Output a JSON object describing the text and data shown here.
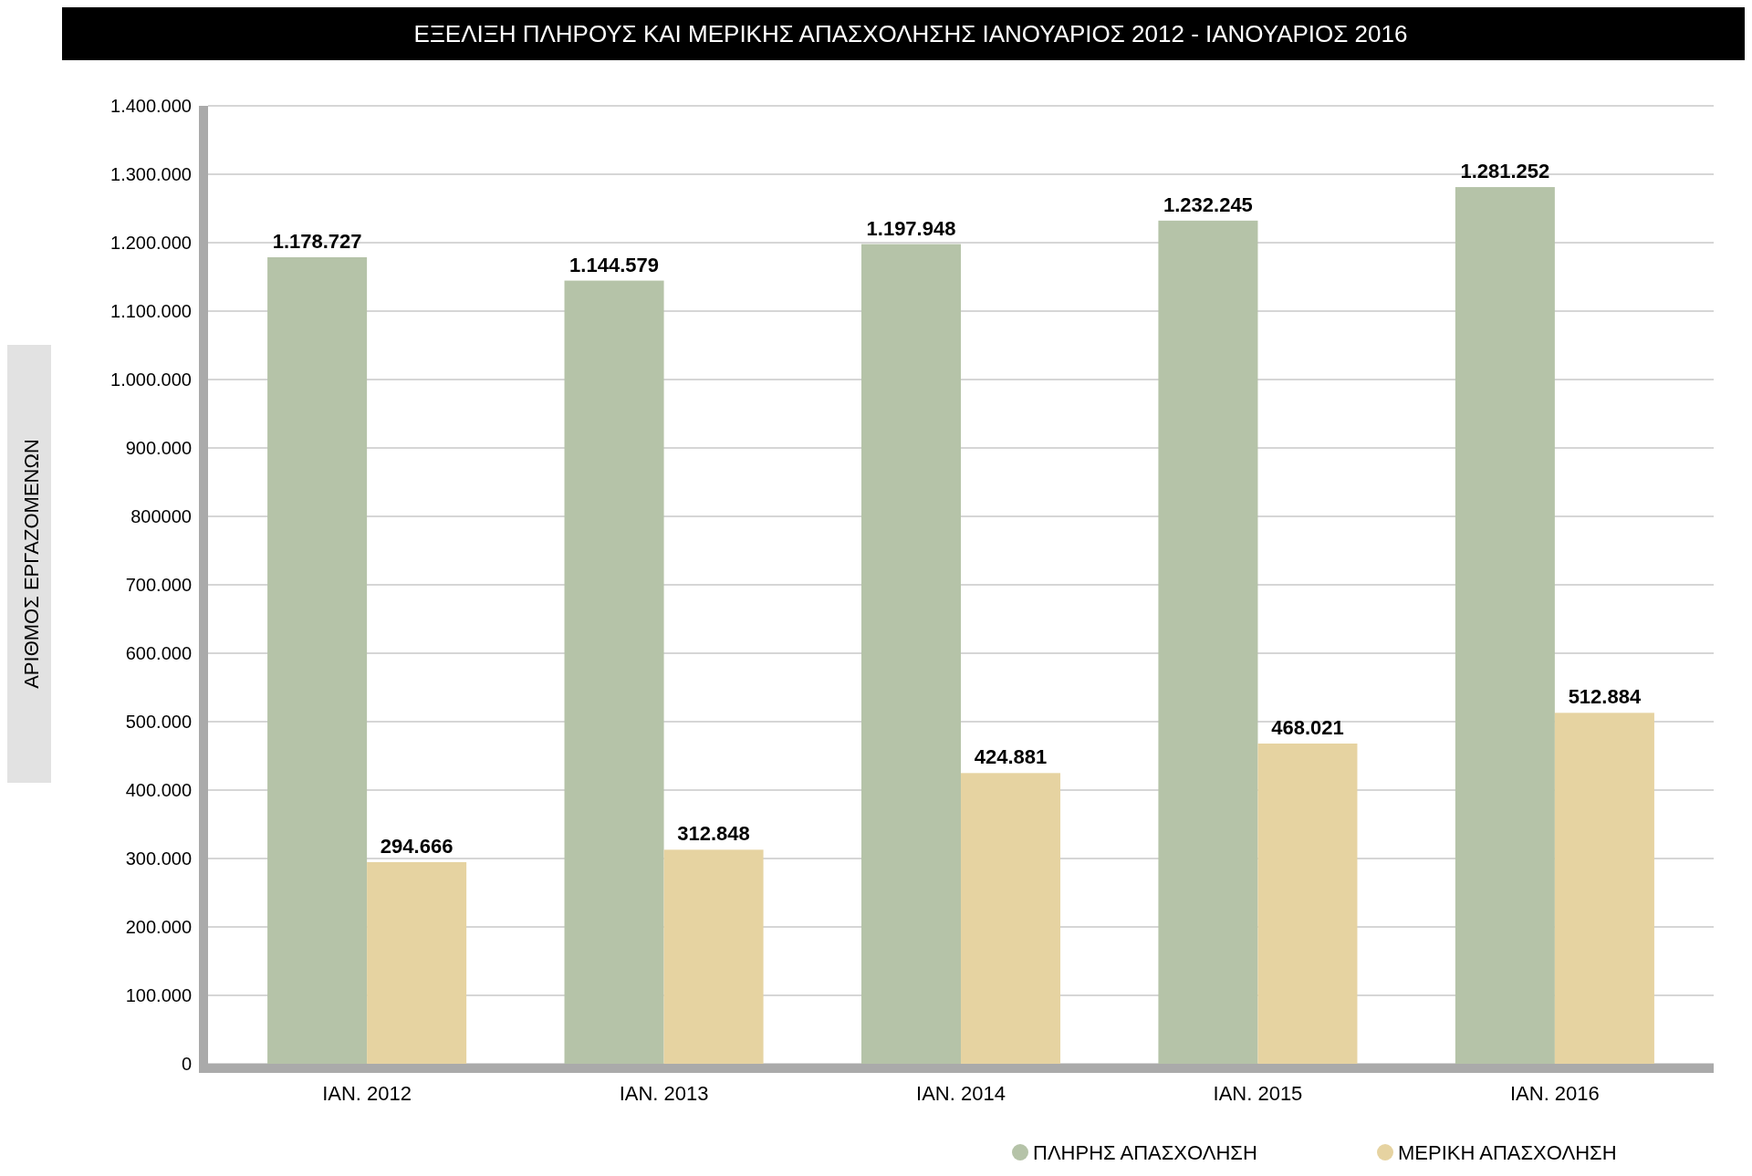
{
  "chart_data": {
    "type": "bar",
    "title": "ΕΞΕΛΙΞΗ ΠΛΗΡΟΥΣ ΚΑΙ ΜΕΡΙΚΗΣ ΑΠΑΣΧΟΛΗΣΗΣ ΙΑΝΟΥΑΡΙΟΣ 2012 - ΙΑΝΟΥΑΡΙΟΣ 2016",
    "ylabel": "ΑΡΙΘΜΟΣ ΕΡΓΑΖΟΜΕΝΩΝ",
    "categories": [
      "ΙΑΝ. 2012",
      "ΙΑΝ. 2013",
      "ΙΑΝ. 2014",
      "ΙΑΝ. 2015",
      "ΙΑΝ. 2016"
    ],
    "series": [
      {
        "name": "ΠΛΗΡΗΣ ΑΠΑΣΧΟΛΗΣΗ",
        "color": "#b5c3a8",
        "values": [
          1178727,
          1144579,
          1197948,
          1232245,
          1281252
        ],
        "value_labels": [
          "1.178.727",
          "1.144.579",
          "1.197.948",
          "1.232.245",
          "1.281.252"
        ]
      },
      {
        "name": "ΜΕΡΙΚΗ ΑΠΑΣΧΟΛΗΣΗ",
        "color": "#e6d3a1",
        "values": [
          294666,
          312848,
          424881,
          468021,
          512884
        ],
        "value_labels": [
          "294.666",
          "312.848",
          "424.881",
          "468.021",
          "512.884"
        ]
      }
    ],
    "ylim": [
      0,
      1400000
    ],
    "yticks": [
      0,
      {
        "value": 100000,
        "label": "100.000"
      },
      {
        "value": 200000,
        "label": "200.000"
      },
      {
        "value": 300000,
        "label": "300.000"
      },
      {
        "value": 400000,
        "label": "400.000"
      },
      {
        "value": 500000,
        "label": "500.000"
      },
      {
        "value": 600000,
        "label": "600.000"
      },
      {
        "value": 700000,
        "label": "700.000"
      },
      800000,
      {
        "value": 900000,
        "label": "900.000"
      },
      {
        "value": 1000000,
        "label": "1.000.000"
      },
      {
        "value": 1100000,
        "label": "1.100.000"
      },
      {
        "value": 1200000,
        "label": "1.200.000"
      },
      {
        "value": 1300000,
        "label": "1.300.000"
      },
      {
        "value": 1400000,
        "label": "1.400.000"
      }
    ],
    "grid": "y",
    "legend": "bottom right"
  }
}
